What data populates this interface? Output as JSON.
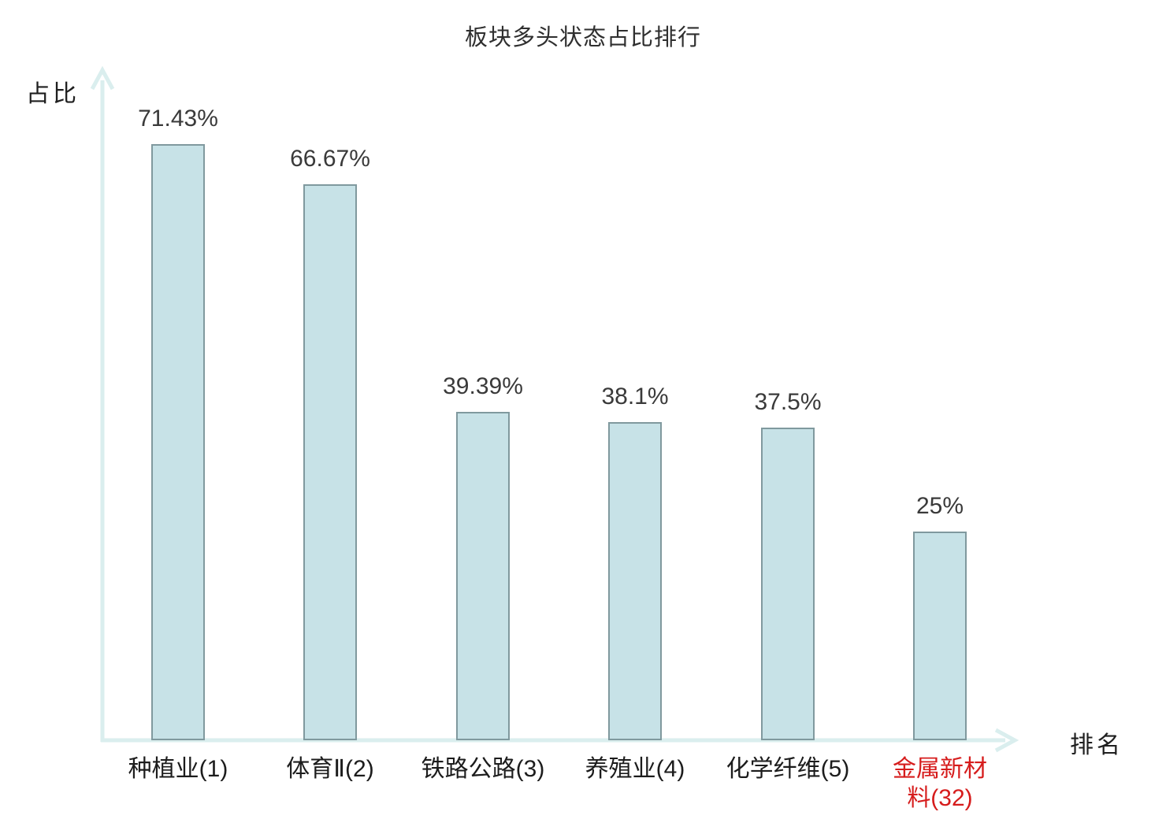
{
  "chart_data": {
    "type": "bar",
    "title": "板块多头状态占比排行",
    "xlabel": "排名",
    "ylabel": "占比",
    "categories": [
      "种植业(1)",
      "体育Ⅱ(2)",
      "铁路公路(3)",
      "养殖业(4)",
      "化学纤维(5)",
      "金属新材料(32)"
    ],
    "values": [
      71.43,
      66.67,
      39.39,
      38.1,
      37.5,
      25
    ],
    "value_labels": [
      "71.43%",
      "66.67%",
      "39.39%",
      "38.1%",
      "37.5%",
      "25%"
    ],
    "highlight_index": 5,
    "ylim": [
      0,
      80
    ],
    "grid": false,
    "legend": "none",
    "colors": {
      "bar_fill": "#c7e2e7",
      "bar_border": "#80999e",
      "axis": "#daeeee",
      "value_text": "#3a3a3a",
      "category_text": "#1c1c1c",
      "highlight_text": "#d61c1c"
    }
  }
}
